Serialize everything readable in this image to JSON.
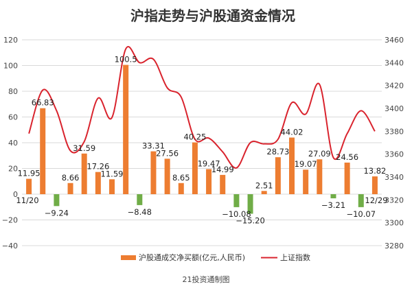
{
  "chart_data": {
    "type": "bar+line",
    "title": "沪指走势与沪股通资金情况",
    "source": "21投资通制图",
    "first_date": "11/20",
    "last_date": "12/29",
    "y_left": {
      "min": -40,
      "max": 120,
      "ticks": [
        -40,
        -20,
        0,
        20,
        40,
        60,
        80,
        100,
        120
      ]
    },
    "y_right": {
      "min": 3280,
      "max": 3460,
      "ticks": [
        3280,
        3300,
        3320,
        3340,
        3360,
        3380,
        3400,
        3420,
        3440,
        3460
      ]
    },
    "series": [
      {
        "name": "沪股通成交净买额(亿元,人民币)",
        "type": "bar",
        "axis": "left",
        "positive_color": "#ED7D31",
        "negative_color": "#70AD47",
        "values": [
          11.95,
          66.83,
          -9.24,
          8.66,
          31.59,
          17.26,
          11.59,
          100.5,
          -8.48,
          33.31,
          27.56,
          8.65,
          40.25,
          19.47,
          14.99,
          -10.08,
          -15.2,
          2.51,
          28.73,
          44.02,
          19.07,
          27.09,
          -3.21,
          24.56,
          -10.07,
          13.82
        ],
        "labels": [
          "11.95",
          "66.83",
          "−9.24",
          "8.66",
          "31.59",
          "17.26",
          "11.59",
          "100.5",
          "−8.48",
          "33.31",
          "27.56",
          "8.65",
          "40.25",
          "19.47",
          "14.99",
          "−10.08",
          "−15.20",
          "2.51",
          "28.73",
          "44.02",
          "19.07",
          "27.09",
          "−3.21",
          "24.56",
          "−10.07",
          "13.82"
        ],
        "shown_labels": [
          0,
          1,
          2,
          3,
          4,
          5,
          6,
          7,
          8,
          9,
          10,
          11,
          12,
          13,
          14,
          15,
          16,
          17,
          18,
          19,
          20,
          21,
          22,
          23,
          24,
          25
        ]
      },
      {
        "name": "上证指数",
        "type": "line",
        "axis": "right",
        "color": "#D9232D",
        "values": [
          3378,
          3416,
          3398,
          3363,
          3371,
          3409,
          3392,
          3452,
          3440,
          3443,
          3418,
          3410,
          3373,
          3374,
          3362,
          3348,
          3370,
          3369,
          3373,
          3405,
          3395,
          3421,
          3357,
          3378,
          3398,
          3380
        ]
      }
    ],
    "legend_position": "bottom"
  }
}
